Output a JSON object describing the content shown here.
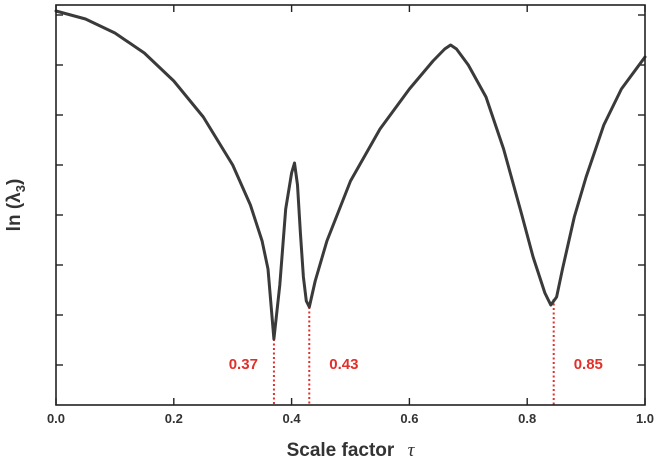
{
  "chart_data": {
    "type": "line",
    "xlabel": "Scale factor",
    "xlabel_symbol": "τ",
    "ylabel_main": "ln (λ",
    "ylabel_sub": "3",
    "ylabel_close": ")",
    "xlim": [
      0.0,
      1.0
    ],
    "ylim": [
      0.0,
      1.0
    ],
    "y_tick_labels_shown": false,
    "x_ticks": [
      0.0,
      0.2,
      0.4,
      0.6,
      0.8,
      1.0
    ],
    "x_tick_labels": [
      "0.0",
      "0.2",
      "0.4",
      "0.6",
      "0.8",
      "1.0"
    ],
    "y_ticks": [
      0.1,
      0.225,
      0.35,
      0.475,
      0.6,
      0.725,
      0.85,
      0.975
    ],
    "grid": false,
    "series": [
      {
        "color": "#3a3a3a",
        "x": [
          0.0,
          0.05,
          0.1,
          0.15,
          0.2,
          0.25,
          0.3,
          0.33,
          0.35,
          0.36,
          0.37,
          0.38,
          0.39,
          0.4,
          0.405,
          0.41,
          0.415,
          0.42,
          0.425,
          0.43,
          0.44,
          0.46,
          0.5,
          0.55,
          0.6,
          0.64,
          0.66,
          0.67,
          0.68,
          0.7,
          0.73,
          0.76,
          0.79,
          0.81,
          0.83,
          0.84,
          0.85,
          0.86,
          0.88,
          0.9,
          0.93,
          0.96,
          1.0
        ],
        "y": [
          0.985,
          0.965,
          0.93,
          0.88,
          0.81,
          0.72,
          0.6,
          0.5,
          0.41,
          0.34,
          0.165,
          0.3,
          0.49,
          0.58,
          0.605,
          0.55,
          0.43,
          0.32,
          0.26,
          0.245,
          0.31,
          0.41,
          0.56,
          0.69,
          0.79,
          0.86,
          0.89,
          0.9,
          0.89,
          0.85,
          0.77,
          0.64,
          0.48,
          0.37,
          0.28,
          0.25,
          0.27,
          0.34,
          0.47,
          0.57,
          0.7,
          0.79,
          0.87
        ]
      }
    ],
    "annotations": [
      {
        "label": "0.37",
        "x": 0.37,
        "y": 0.165,
        "color": "#e0302b",
        "side": "left"
      },
      {
        "label": "0.43",
        "x": 0.43,
        "y": 0.245,
        "color": "#e0302b",
        "side": "right"
      },
      {
        "label": "0.85",
        "x": 0.845,
        "y": 0.265,
        "color": "#e0302b",
        "side": "right"
      }
    ]
  }
}
